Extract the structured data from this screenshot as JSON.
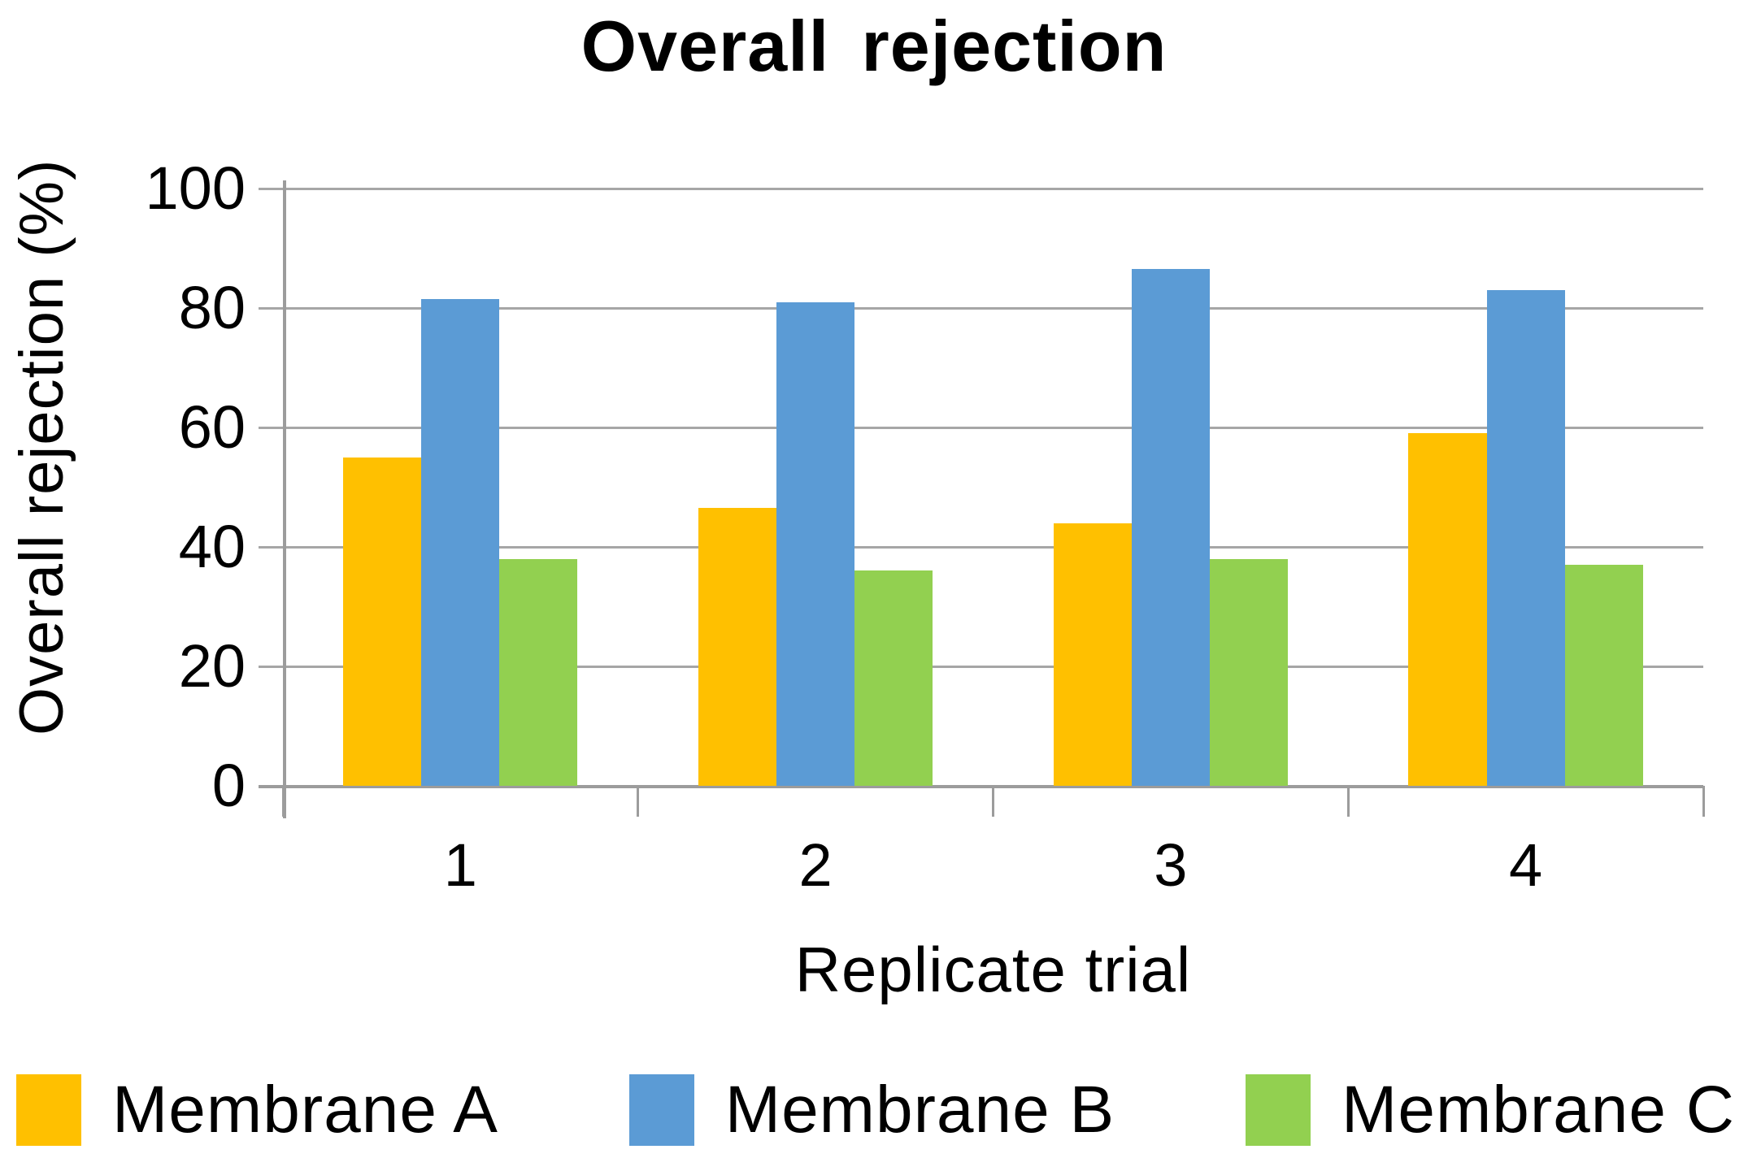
{
  "page": {
    "background": "#ffffff"
  },
  "chart_data": {
    "type": "bar",
    "title": "Overall rejection",
    "xlabel": "Replicate trial",
    "ylabel": "Overall rejection (%)",
    "categories": [
      "1",
      "2",
      "3",
      "4"
    ],
    "series": [
      {
        "name": "Membrane A",
        "color": "#FFC000",
        "values": [
          55,
          46.5,
          44,
          59
        ]
      },
      {
        "name": "Membrane B",
        "color": "#5B9BD5",
        "values": [
          81.5,
          81,
          86.5,
          83
        ]
      },
      {
        "name": "Membrane C",
        "color": "#92D050",
        "values": [
          38,
          36,
          38,
          37
        ]
      }
    ],
    "ylim": [
      0,
      100
    ],
    "yticks": [
      0,
      20,
      40,
      60,
      80,
      100
    ],
    "grid": true,
    "legend_position": "bottom",
    "gridline_color": "#A6A6A6",
    "axis_color": "#9C9C9C",
    "text_color": "#000000"
  }
}
